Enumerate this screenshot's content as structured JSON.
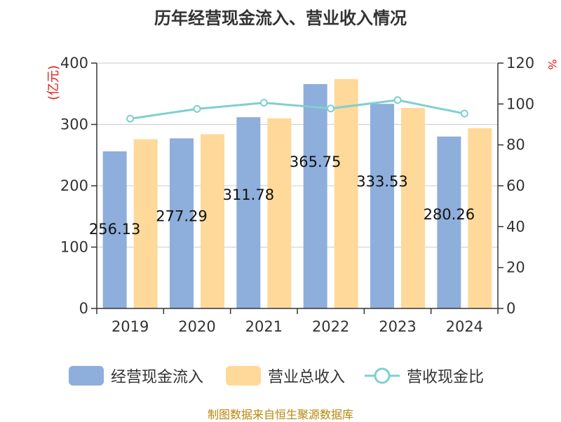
{
  "title": "历年经营现金流入、营业收入情况",
  "source": "制图数据来自恒生聚源数据库",
  "chart_data": {
    "type": "bar",
    "categories": [
      "2019",
      "2020",
      "2021",
      "2022",
      "2023",
      "2024"
    ],
    "left_axis": {
      "unit_label": "(亿元)",
      "min": 0,
      "max": 400,
      "ticks": [
        0,
        100,
        200,
        300,
        400
      ]
    },
    "right_axis": {
      "unit_label": "%",
      "min": 0,
      "max": 120,
      "ticks": [
        0,
        20,
        40,
        60,
        80,
        100,
        120
      ]
    },
    "series": [
      {
        "name": "经营现金流入",
        "type": "bar",
        "axis": "left",
        "color": "#8eaedb",
        "values": [
          256.13,
          277.29,
          311.78,
          365.75,
          333.53,
          280.26
        ],
        "labels": [
          "256.13",
          "277.29",
          "311.78",
          "365.75",
          "333.53",
          "280.26"
        ]
      },
      {
        "name": "营业总收入",
        "type": "bar",
        "axis": "left",
        "color": "#ffd99a",
        "values": [
          276,
          284,
          310,
          374,
          327,
          294
        ]
      },
      {
        "name": "营收现金比",
        "type": "line",
        "axis": "right",
        "color": "#7fd0d0",
        "values": [
          92.8,
          97.6,
          100.6,
          97.8,
          101.9,
          95.3
        ]
      }
    ],
    "grid": true,
    "legend_position": "bottom"
  }
}
